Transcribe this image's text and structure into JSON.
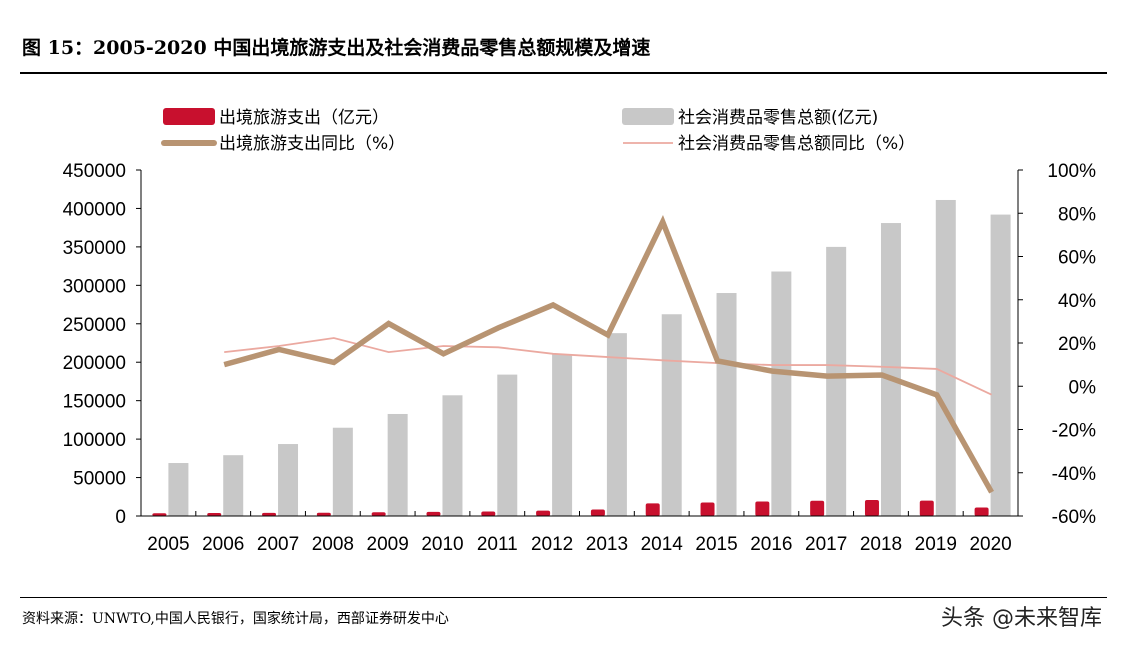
{
  "title": "图 15：2005-2020 中国出境旅游支出及社会消费品零售总额规模及增速",
  "source": "资料来源：UNWTO,中国人民银行，国家统计局，西部证券研发中心",
  "watermark": "头条 @未来智库",
  "chart_data": {
    "type": "bar+line",
    "categories": [
      "2005",
      "2006",
      "2007",
      "2008",
      "2009",
      "2010",
      "2011",
      "2012",
      "2013",
      "2014",
      "2015",
      "2016",
      "2017",
      "2018",
      "2019",
      "2020"
    ],
    "left_axis": {
      "ylim": [
        0,
        450000
      ],
      "ticks": [
        "0",
        "50000",
        "100000",
        "150000",
        "200000",
        "250000",
        "300000",
        "350000",
        "400000",
        "450000"
      ]
    },
    "right_axis": {
      "ylim": [
        -60,
        100
      ],
      "ticks": [
        "-60%",
        "-40%",
        "-20%",
        "0%",
        "20%",
        "40%",
        "60%",
        "80%",
        "100%"
      ]
    },
    "legend_position": "top",
    "grid": false,
    "series": [
      {
        "name": "出境旅游支出（亿元）",
        "type": "bar",
        "axis": "left",
        "color": "#c8102e",
        "values": [
          3500,
          3900,
          4000,
          4200,
          4800,
          5300,
          5800,
          7000,
          8500,
          16500,
          17500,
          18800,
          19800,
          20800,
          20000,
          11000
        ]
      },
      {
        "name": "社会消费品零售总额(亿元)",
        "type": "bar",
        "axis": "left",
        "color": "#c8c8c8",
        "values": [
          68900,
          79100,
          93600,
          114800,
          132700,
          157000,
          183900,
          210300,
          237800,
          262400,
          290000,
          318000,
          350000,
          381000,
          411000,
          392000
        ]
      },
      {
        "name": "出境旅游支出同比（%）",
        "type": "line",
        "axis": "right",
        "color": "#b89472",
        "values": [
          null,
          10,
          17,
          11,
          29,
          15,
          27,
          37.6,
          23.7,
          76,
          11.7,
          7,
          4.7,
          5.2,
          -4,
          -49
        ]
      },
      {
        "name": "社会消费品零售总额同比（%）",
        "type": "line",
        "axis": "right",
        "color": "#eba9a0",
        "values": [
          null,
          15.8,
          18.6,
          22.3,
          15.8,
          18.6,
          18,
          15,
          13.5,
          12,
          10.7,
          9.8,
          9.8,
          9,
          8,
          -3.9
        ]
      }
    ]
  }
}
